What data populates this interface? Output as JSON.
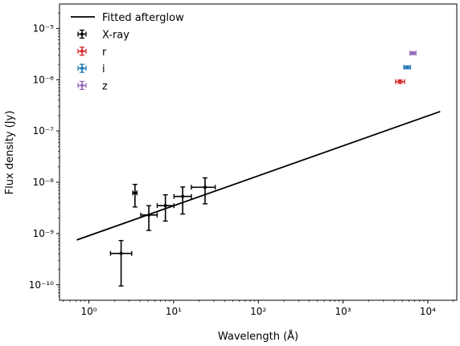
{
  "chart_data": {
    "type": "scatter",
    "xlabel": "Wavelength (Å)",
    "ylabel": "Flux density (Jy)",
    "xscale": "log",
    "yscale": "log",
    "xlim": [
      0.45,
      22000
    ],
    "ylim": [
      5e-11,
      3e-05
    ],
    "x_ticks": [
      {
        "value": 1,
        "label": "10⁰"
      },
      {
        "value": 10,
        "label": "10¹"
      },
      {
        "value": 100,
        "label": "10²"
      },
      {
        "value": 1000,
        "label": "10³"
      },
      {
        "value": 10000,
        "label": "10⁴"
      }
    ],
    "y_ticks": [
      {
        "value": 1e-10,
        "label": "10⁻¹⁰"
      },
      {
        "value": 1e-09,
        "label": "10⁻⁹"
      },
      {
        "value": 1e-08,
        "label": "10⁻⁸"
      },
      {
        "value": 1e-07,
        "label": "10⁻⁷"
      },
      {
        "value": 1e-06,
        "label": "10⁻⁶"
      },
      {
        "value": 1e-05,
        "label": "10⁻⁵"
      }
    ],
    "legend_position": "top-left",
    "grid": false,
    "fit_line": {
      "name": "Fitted afterglow",
      "color": "#000000",
      "x": [
        0.72,
        14000
      ],
      "y": [
        7.5e-10,
        2.4e-07
      ]
    },
    "series": [
      {
        "name": "X-ray",
        "color": "#000000",
        "points": [
          {
            "x": 2.4,
            "y": 4.1e-10,
            "xlo": 1.8,
            "xhi": 3.2,
            "ylo": 9.5e-11,
            "yhi": 7.3e-10
          },
          {
            "x": 3.5,
            "y": 6.2e-09,
            "xlo": 3.3,
            "xhi": 3.7,
            "ylo": 3.3e-09,
            "yhi": 9.1e-09
          },
          {
            "x": 5.1,
            "y": 2.3e-09,
            "xlo": 4.1,
            "xhi": 6.4,
            "ylo": 1.15e-09,
            "yhi": 3.5e-09
          },
          {
            "x": 8.0,
            "y": 3.5e-09,
            "xlo": 6.4,
            "xhi": 10.1,
            "ylo": 1.75e-09,
            "yhi": 5.7e-09
          },
          {
            "x": 12.8,
            "y": 5.3e-09,
            "xlo": 10.1,
            "xhi": 16.2,
            "ylo": 2.4e-09,
            "yhi": 8.1e-09
          },
          {
            "x": 23.5,
            "y": 8e-09,
            "xlo": 16.2,
            "xhi": 31.0,
            "ylo": 3.8e-09,
            "yhi": 1.22e-08
          }
        ]
      },
      {
        "name": "r",
        "color": "#d62728",
        "points": [
          {
            "x": 4700,
            "y": 9.2e-07,
            "xlo": 4180,
            "xhi": 5320,
            "ylo": 8.5e-07,
            "yhi": 9.9e-07
          }
        ]
      },
      {
        "name": "i",
        "color": "#1f77b4",
        "points": [
          {
            "x": 5700,
            "y": 1.75e-06,
            "xlo": 5220,
            "xhi": 6250,
            "ylo": 1.64e-06,
            "yhi": 1.86e-06
          }
        ]
      },
      {
        "name": "z",
        "color": "#9467bd",
        "points": [
          {
            "x": 6650,
            "y": 3.3e-06,
            "xlo": 6180,
            "xhi": 7250,
            "ylo": 3.1e-06,
            "yhi": 3.5e-06
          }
        ]
      }
    ]
  }
}
